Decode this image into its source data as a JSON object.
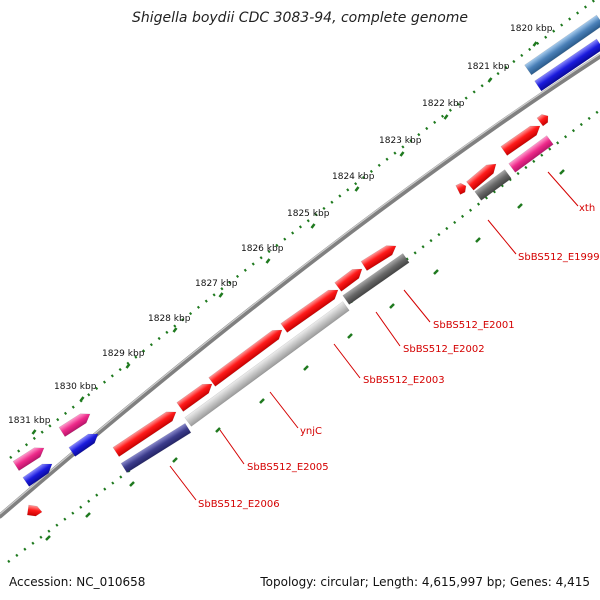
{
  "title": "Shigella boydii CDC 3083-94, complete genome",
  "footer": {
    "accession": "Accession: NC_010658",
    "summary": "Topology: circular; Length: 4,615,997 bp; Genes: 4,415"
  },
  "scale_labels": [
    "1820 kbp",
    "1821 kbp",
    "1822 kbp",
    "1823 kbp",
    "1824 kbp",
    "1825 kbp",
    "1826 kbp",
    "1827 kbp",
    "1828 kbp",
    "1829 kbp",
    "1830 kbp",
    "1831 kbp"
  ],
  "gene_labels": [
    "xth",
    "SbBS512_E1999",
    "SbBS512_E2001",
    "SbBS512_E2002",
    "SbBS512_E2003",
    "ynjC",
    "SbBS512_E2005",
    "SbBS512_E2006"
  ],
  "colors": {
    "backbone": "#707070",
    "tick": "#1f7a1f",
    "label": "#d40000",
    "red": "#ff1a1a",
    "pink": "#ee2a8a",
    "blue": "#1a1add",
    "steel": "#4a80b8",
    "navy": "#3c3c8c",
    "gray": "#686868",
    "lightgray": "#c4c4c4"
  }
}
